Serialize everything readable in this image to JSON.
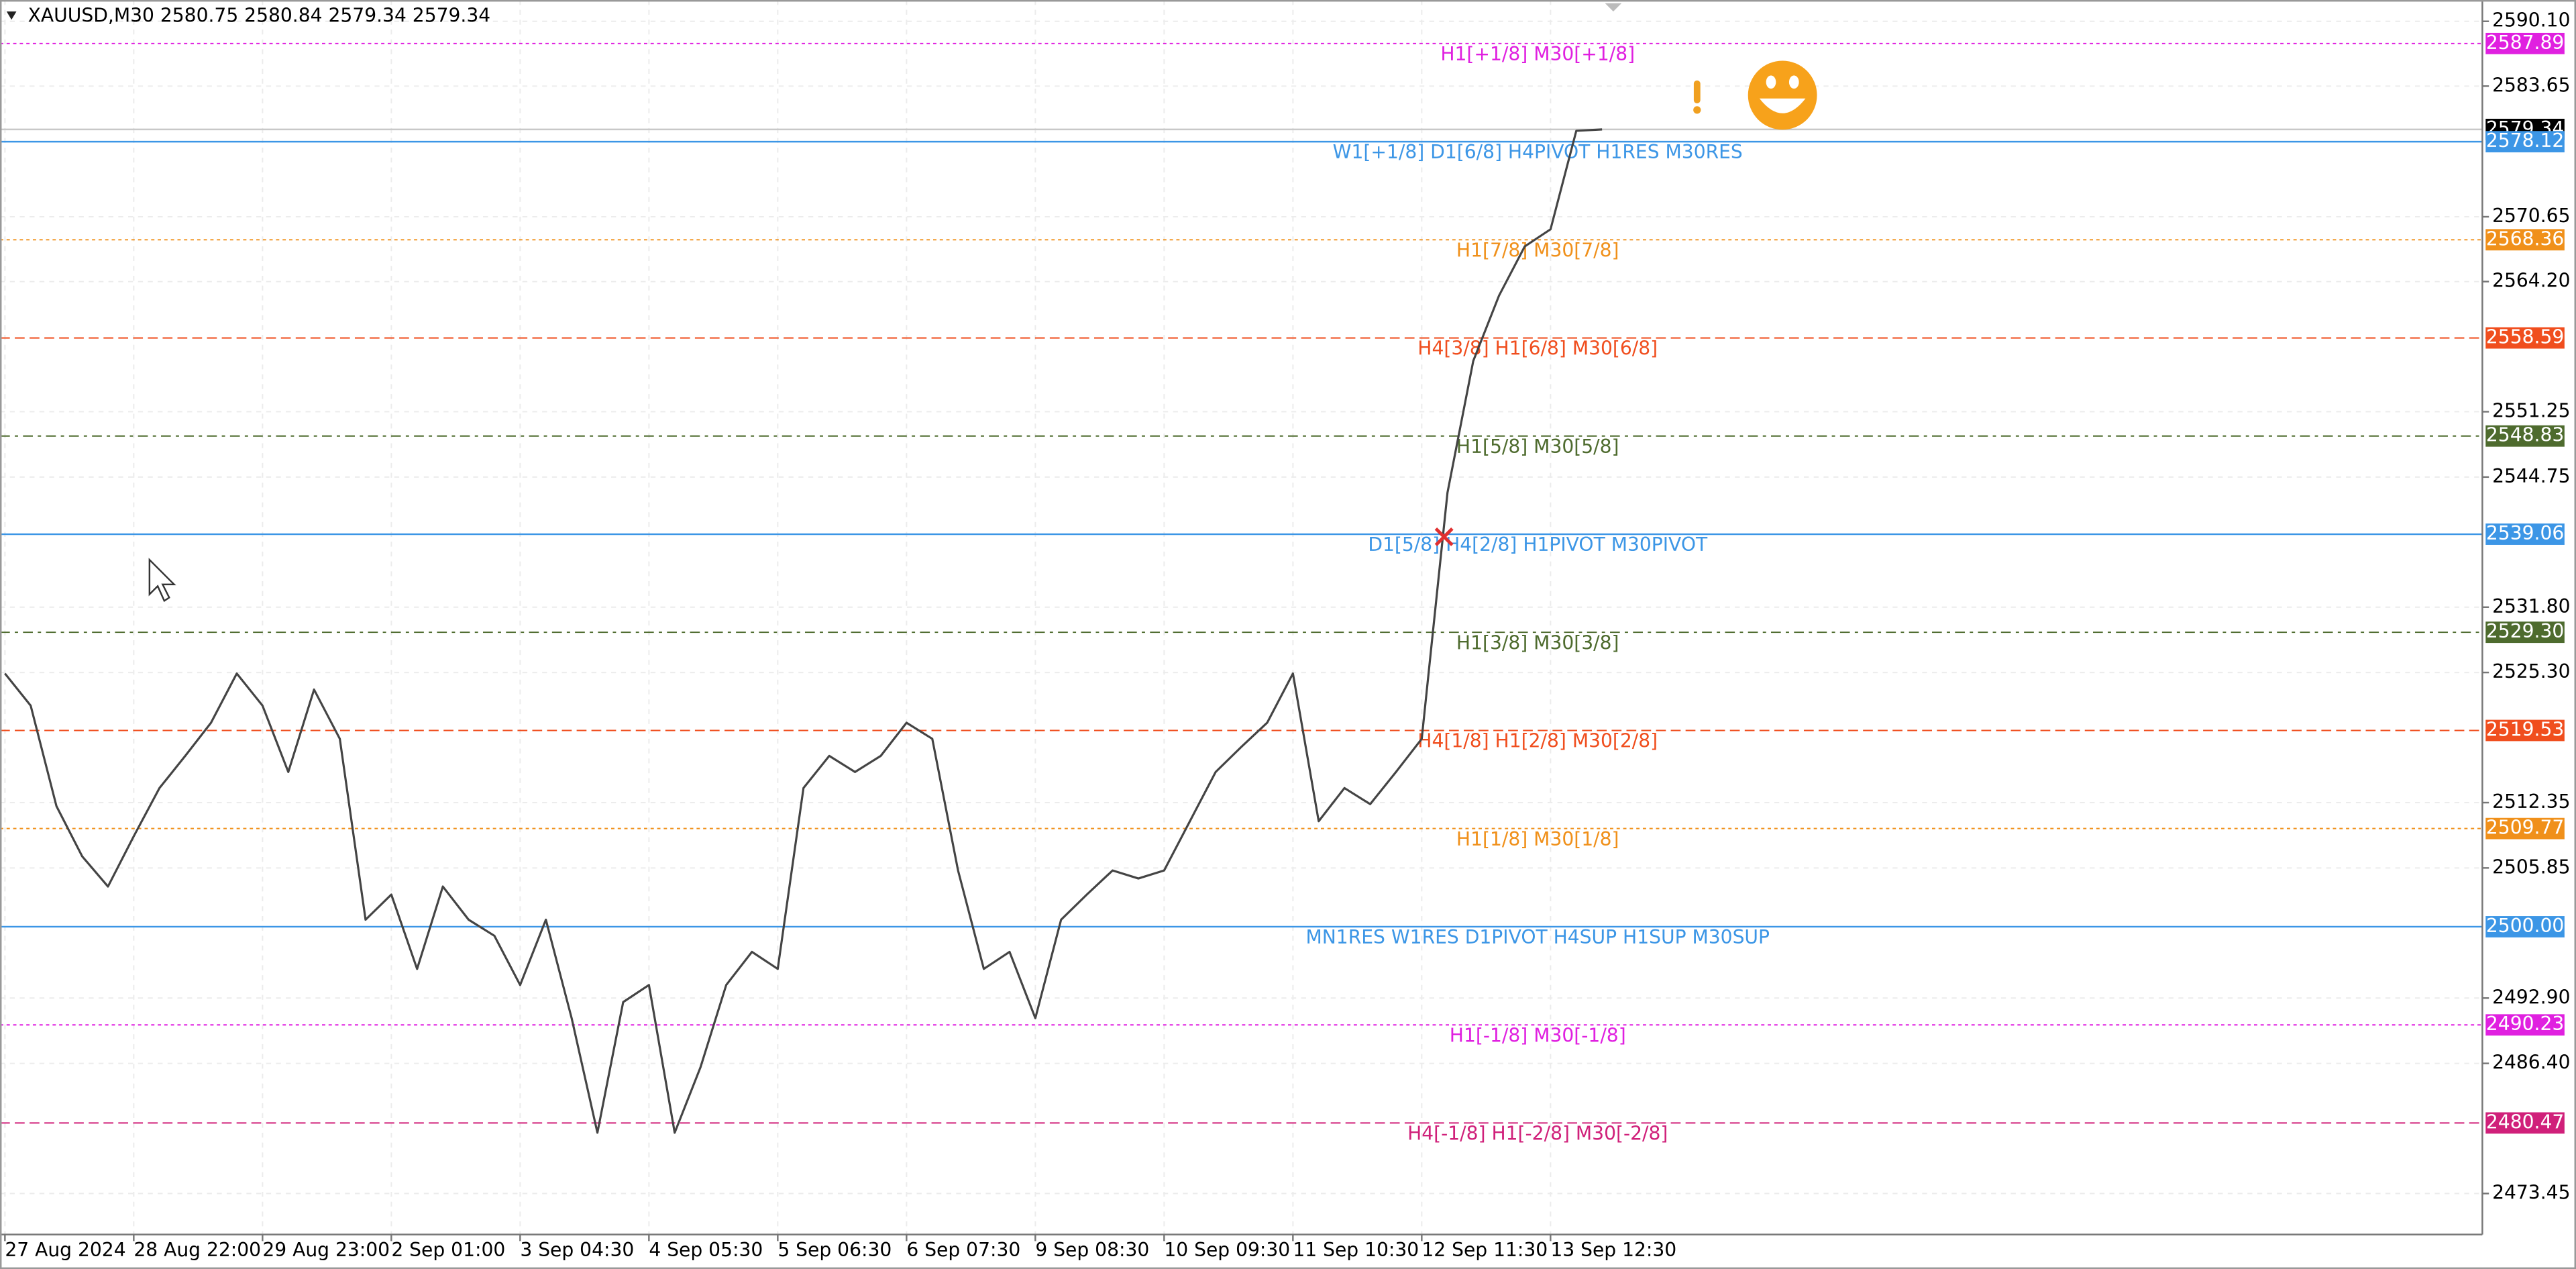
{
  "chart_data": {
    "type": "line",
    "title": "XAUUSD,M30  2580.75 2580.84 2579.34 2579.34",
    "color": "#444444",
    "categories": [
      "27 Aug 2024",
      null,
      null,
      null,
      null,
      "28 Aug 22:00",
      null,
      null,
      null,
      null,
      "29 Aug 23:00",
      null,
      null,
      null,
      null,
      "2 Sep 01:00",
      null,
      null,
      null,
      null,
      "3 Sep 04:30",
      null,
      null,
      null,
      null,
      "4 Sep 05:30",
      null,
      null,
      null,
      null,
      "5 Sep 06:30",
      null,
      null,
      null,
      null,
      "6 Sep 07:30",
      null,
      null,
      null,
      null,
      "9 Sep 08:30",
      null,
      null,
      null,
      null,
      "10 Sep 09:30",
      null,
      null,
      null,
      null,
      "11 Sep 10:30",
      null,
      null,
      null,
      null,
      "12 Sep 11:30",
      null,
      null,
      null,
      null,
      "13 Sep 12:30",
      null,
      null
    ],
    "values": [
      2525.2,
      2522,
      2512,
      2507,
      2504,
      2509,
      2513.8,
      2517,
      2520.3,
      2525.2,
      2522,
      2515.4,
      2523.6,
      2518.7,
      2500.7,
      2503.2,
      2495.8,
      2504,
      2500.7,
      2499.1,
      2494.2,
      2500.7,
      2490.9,
      2479.5,
      2492.5,
      2494.2,
      2479.5,
      2486,
      2494.2,
      2497.5,
      2495.8,
      2513.8,
      2517,
      2515.4,
      2517,
      2520.3,
      2518.7,
      2505.6,
      2495.8,
      2497.5,
      2490.9,
      2500.7,
      2503.2,
      2505.6,
      2504.8,
      2505.6,
      2510.5,
      2515.4,
      2517.9,
      2520.3,
      2525.2,
      2510.5,
      2513.8,
      2512.2,
      2515.4,
      2518.7,
      2543.2,
      2556.3,
      2562.8,
      2567.7,
      2569.4,
      2579.2,
      2579.34
    ],
    "ylim": [
      2469.37,
      2592.22
    ],
    "yticks": [
      {
        "value": 2590.1,
        "label": "2590.10"
      },
      {
        "value": 2583.65,
        "label": "2583.65"
      },
      {
        "value": 2570.65,
        "label": "2570.65"
      },
      {
        "value": 2564.2,
        "label": "2564.20"
      },
      {
        "value": 2551.25,
        "label": "2551.25"
      },
      {
        "value": 2544.75,
        "label": "2544.75"
      },
      {
        "value": 2531.8,
        "label": "2531.80"
      },
      {
        "value": 2525.3,
        "label": "2525.30"
      },
      {
        "value": 2512.35,
        "label": "2512.35"
      },
      {
        "value": 2505.85,
        "label": "2505.85"
      },
      {
        "value": 2492.9,
        "label": "2492.90"
      },
      {
        "value": 2486.4,
        "label": "2486.40"
      },
      {
        "value": 2473.45,
        "label": "2473.45"
      }
    ],
    "grid": true,
    "levels": [
      {
        "price": {
          "value": 2587.89,
          "label": "2587.89"
        },
        "text": "H1[+1/8] M30[+1/8]",
        "color": "#e020e0",
        "style": "dotted"
      },
      {
        "price": {
          "value": 2579.34,
          "label": "2579.34"
        },
        "color": "#000000",
        "style": "solid"
      },
      {
        "price": {
          "value": 2578.12,
          "label": "2578.12"
        },
        "text": "W1[+1/8] D1[6/8] H4PIVOT H1RES M30RES",
        "color": "#3c96e6",
        "style": "solid"
      },
      {
        "price": {
          "value": 2568.36,
          "label": "2568.36"
        },
        "text": "H1[7/8] M30[7/8]",
        "color": "#f0901a",
        "style": "dotted"
      },
      {
        "price": {
          "value": 2558.59,
          "label": "2558.59"
        },
        "text": "H4[3/8] H1[6/8] M30[6/8]",
        "color": "#f04e1e",
        "style": "dashed"
      },
      {
        "price": {
          "value": 2548.83,
          "label": "2548.83"
        },
        "text": "H1[5/8] M30[5/8]",
        "color": "#4e6b2e",
        "style": "dashdot"
      },
      {
        "price": {
          "value": 2539.06,
          "label": "2539.06"
        },
        "text": "D1[5/8] H4[2/8] H1PIVOT M30PIVOT",
        "color": "#3c96e6",
        "style": "solid"
      },
      {
        "price": {
          "value": 2529.3,
          "label": "2529.30"
        },
        "text": "H1[3/8] M30[3/8]",
        "color": "#4e6b2e",
        "style": "dashdot"
      },
      {
        "price": {
          "value": 2519.53,
          "label": "2519.53"
        },
        "text": "H4[1/8] H1[2/8] M30[2/8]",
        "color": "#f04e1e",
        "style": "dashed"
      },
      {
        "price": {
          "value": 2509.77,
          "label": "2509.77"
        },
        "text": "H1[1/8] M30[1/8]",
        "color": "#f0901a",
        "style": "dotted"
      },
      {
        "price": {
          "value": 2500,
          "label": "2500.00"
        },
        "text": "MN1RES W1RES D1PIVOT H4SUP H1SUP M30SUP",
        "color": "#3c96e6",
        "style": "solid"
      },
      {
        "price": {
          "value": 2490.23,
          "label": "2490.23"
        },
        "text": "H1[-1/8] M30[-1/8]",
        "color": "#e020e0",
        "style": "dotted"
      },
      {
        "price": {
          "value": 2480.47,
          "label": "2480.47"
        },
        "text": "H4[-1/8] H1[-2/8] M30[-2/8]",
        "color": "#d0207a",
        "style": "dashed"
      }
    ]
  }
}
